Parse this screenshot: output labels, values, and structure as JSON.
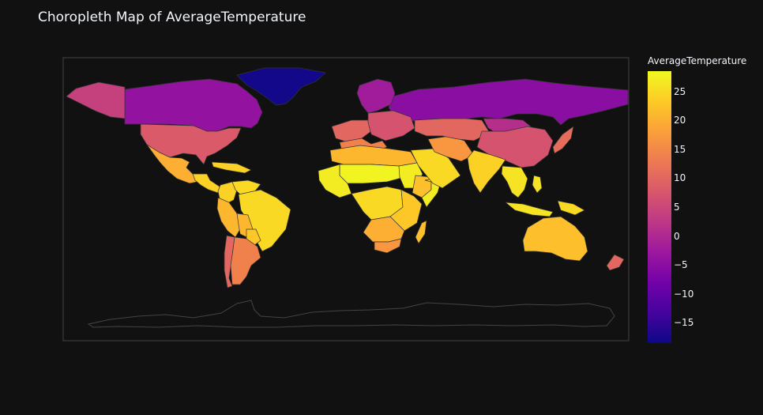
{
  "page": {
    "background": "#111111",
    "plot_background": "#111111",
    "frame_color": "#444444",
    "border_color": "#333333"
  },
  "chart": {
    "title": "Choropleth Map of AverageTemperature",
    "colorbar_title": "AverageTemperature",
    "colorscale": "Plasma",
    "colorscale_stops": [
      "#0d0887",
      "#46039f",
      "#7201a8",
      "#9c179e",
      "#bd3786",
      "#d8576b",
      "#ed7953",
      "#fb9f3a",
      "#fdca26",
      "#f0f921"
    ],
    "range": [
      -18.5,
      28.5
    ],
    "ticks": [
      {
        "value": 25,
        "label": "25"
      },
      {
        "value": 20,
        "label": "20"
      },
      {
        "value": 15,
        "label": "15"
      },
      {
        "value": 10,
        "label": "10"
      },
      {
        "value": 5,
        "label": "5"
      },
      {
        "value": 0,
        "label": "0"
      },
      {
        "value": -5,
        "label": "−5"
      },
      {
        "value": -10,
        "label": "−10"
      },
      {
        "value": -15,
        "label": "−15"
      }
    ]
  },
  "chart_data": {
    "type": "heatmap",
    "title": "Choropleth Map of AverageTemperature",
    "value_label": "AverageTemperature",
    "projection": "equirectangular",
    "regions": [
      {
        "name": "Greenland",
        "value": -18
      },
      {
        "name": "Canada",
        "value": -4
      },
      {
        "name": "Alaska",
        "value": 4
      },
      {
        "name": "Russia",
        "value": -5
      },
      {
        "name": "Scandinavia",
        "value": -2
      },
      {
        "name": "United States",
        "value": 8
      },
      {
        "name": "Mexico",
        "value": 20
      },
      {
        "name": "Central America",
        "value": 24
      },
      {
        "name": "Caribbean",
        "value": 24
      },
      {
        "name": "Colombia",
        "value": 24
      },
      {
        "name": "Venezuela",
        "value": 25
      },
      {
        "name": "Brazil",
        "value": 25
      },
      {
        "name": "Peru",
        "value": 21
      },
      {
        "name": "Bolivia",
        "value": 21
      },
      {
        "name": "Paraguay",
        "value": 23
      },
      {
        "name": "Chile",
        "value": 10
      },
      {
        "name": "Argentina",
        "value": 14
      },
      {
        "name": "Western Europe",
        "value": 10
      },
      {
        "name": "Southern Europe",
        "value": 14
      },
      {
        "name": "Eastern Europe",
        "value": 7
      },
      {
        "name": "North Africa",
        "value": 21
      },
      {
        "name": "Sahel",
        "value": 28
      },
      {
        "name": "West Africa",
        "value": 27
      },
      {
        "name": "Sudan",
        "value": 27
      },
      {
        "name": "Ethiopia",
        "value": 22
      },
      {
        "name": "Somalia",
        "value": 27
      },
      {
        "name": "Central Africa",
        "value": 25
      },
      {
        "name": "East Africa",
        "value": 23
      },
      {
        "name": "Southern Africa",
        "value": 20
      },
      {
        "name": "South Africa",
        "value": 17
      },
      {
        "name": "Madagascar",
        "value": 22
      },
      {
        "name": "Arabian Peninsula",
        "value": 25
      },
      {
        "name": "Iran",
        "value": 17
      },
      {
        "name": "Central Asia",
        "value": 10
      },
      {
        "name": "Mongolia",
        "value": 1
      },
      {
        "name": "China",
        "value": 7
      },
      {
        "name": "India",
        "value": 24
      },
      {
        "name": "Southeast Asia",
        "value": 26
      },
      {
        "name": "Japan",
        "value": 11
      },
      {
        "name": "Indonesia",
        "value": 26
      },
      {
        "name": "Papua New Guinea",
        "value": 25
      },
      {
        "name": "Philippines",
        "value": 26
      },
      {
        "name": "Australia",
        "value": 22
      },
      {
        "name": "New Zealand",
        "value": 10
      }
    ]
  }
}
